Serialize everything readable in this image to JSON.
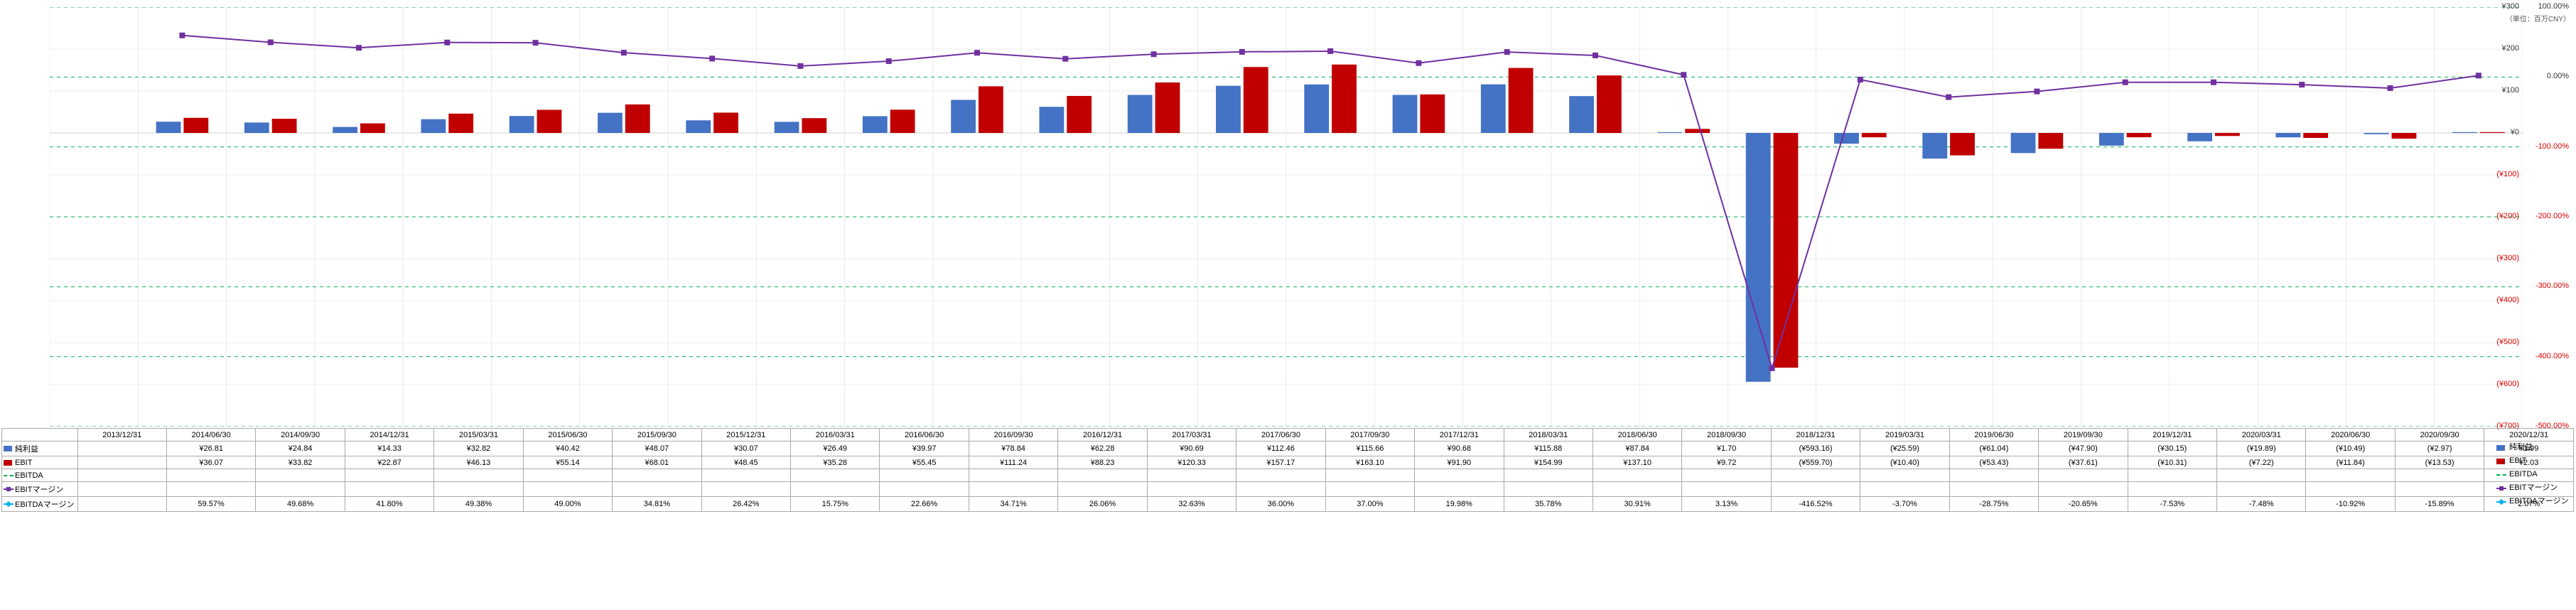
{
  "unit_label": "（単位：百万CNY）",
  "chart": {
    "type": "bar+line",
    "background": "#ffffff",
    "grid_color_major": "#d9d9d9",
    "grid_color_ebit_margin": "#00b050",
    "bar_colors": {
      "net_income": "#4472c4",
      "ebit": "#c00000"
    },
    "line_colors": {
      "ebitda_margin": "#7030a0",
      "ebit_margin_line": "#00b0f0"
    },
    "y_left": {
      "min": -700,
      "max": 300,
      "step": 100,
      "labels": [
        "¥300",
        "¥200",
        "¥100",
        "¥0",
        "(¥100)",
        "(¥200)",
        "(¥300)",
        "(¥400)",
        "(¥500)",
        "(¥600)",
        "(¥700)"
      ]
    },
    "y_right": {
      "min": -500,
      "max": 100,
      "step": 100,
      "labels": [
        "100.00%",
        "0.00%",
        "-100.00%",
        "-200.00%",
        "-300.00%",
        "-400.00%",
        "-500.00%"
      ]
    },
    "categories": [
      "2013/12/31",
      "2014/06/30",
      "2014/09/30",
      "2014/12/31",
      "2015/03/31",
      "2015/06/30",
      "2015/09/30",
      "2015/12/31",
      "2016/03/31",
      "2016/06/30",
      "2016/09/30",
      "2016/12/31",
      "2017/03/31",
      "2017/06/30",
      "2017/09/30",
      "2017/12/31",
      "2018/03/31",
      "2018/06/30",
      "2018/09/30",
      "2018/12/31",
      "2019/03/31",
      "2019/06/30",
      "2019/09/30",
      "2019/12/31",
      "2020/03/31",
      "2020/06/30",
      "2020/09/30",
      "2020/12/31"
    ]
  },
  "rows": {
    "net_income": {
      "label": "純利益",
      "values": [
        null,
        26.81,
        24.84,
        14.33,
        32.82,
        40.42,
        48.07,
        30.07,
        26.49,
        39.97,
        78.84,
        62.28,
        90.69,
        112.46,
        115.66,
        90.68,
        115.88,
        87.84,
        1.7,
        -593.16,
        -25.59,
        -61.04,
        -47.9,
        -30.15,
        -19.89,
        -10.49,
        -2.97,
        1.99
      ]
    },
    "ebit": {
      "label": "EBIT",
      "values": [
        null,
        36.07,
        33.82,
        22.87,
        46.13,
        55.14,
        68.01,
        48.45,
        35.28,
        55.45,
        111.24,
        88.23,
        120.33,
        157.17,
        163.1,
        91.9,
        154.99,
        137.1,
        9.72,
        -559.7,
        -10.4,
        -53.43,
        -37.61,
        -10.31,
        -7.22,
        -11.84,
        -13.53,
        2.03
      ]
    },
    "ebitda": {
      "label": "EBITDA",
      "values": [
        null,
        null,
        null,
        null,
        null,
        null,
        null,
        null,
        null,
        null,
        null,
        null,
        null,
        null,
        null,
        null,
        null,
        null,
        null,
        null,
        null,
        null,
        null,
        null,
        null,
        null,
        null,
        null
      ]
    },
    "ebit_margin": {
      "label": "EBITマージン",
      "values": [
        null,
        null,
        null,
        null,
        null,
        null,
        null,
        null,
        null,
        null,
        null,
        null,
        null,
        null,
        null,
        null,
        null,
        null,
        null,
        null,
        null,
        null,
        null,
        null,
        null,
        null,
        null,
        null
      ]
    },
    "ebitda_margin": {
      "label": "EBITDAマージン",
      "values": [
        null,
        59.57,
        49.68,
        41.8,
        49.38,
        49.0,
        34.81,
        26.42,
        15.75,
        22.66,
        34.71,
        26.06,
        32.63,
        36.0,
        37.0,
        19.98,
        35.78,
        30.91,
        3.13,
        -416.52,
        -3.7,
        -28.75,
        -20.65,
        -7.53,
        -7.48,
        -10.92,
        -15.89,
        2.07
      ]
    }
  },
  "display": {
    "net_income": [
      "",
      "¥26.81",
      "¥24.84",
      "¥14.33",
      "¥32.82",
      "¥40.42",
      "¥48.07",
      "¥30.07",
      "¥26.49",
      "¥39.97",
      "¥78.84",
      "¥62.28",
      "¥90.69",
      "¥112.46",
      "¥115.66",
      "¥90.68",
      "¥115.88",
      "¥87.84",
      "¥1.70",
      "(¥593.16)",
      "(¥25.59)",
      "(¥61.04)",
      "(¥47.90)",
      "(¥30.15)",
      "(¥19.89)",
      "(¥10.49)",
      "(¥2.97)",
      "¥1.99"
    ],
    "ebit": [
      "",
      "¥36.07",
      "¥33.82",
      "¥22.87",
      "¥46.13",
      "¥55.14",
      "¥68.01",
      "¥48.45",
      "¥35.28",
      "¥55.45",
      "¥111.24",
      "¥88.23",
      "¥120.33",
      "¥157.17",
      "¥163.10",
      "¥91.90",
      "¥154.99",
      "¥137.10",
      "¥9.72",
      "(¥559.70)",
      "(¥10.40)",
      "(¥53.43)",
      "(¥37.61)",
      "(¥10.31)",
      "(¥7.22)",
      "(¥11.84)",
      "(¥13.53)",
      "¥2.03"
    ],
    "ebitda": [
      "",
      "",
      "",
      "",
      "",
      "",
      "",
      "",
      "",
      "",
      "",
      "",
      "",
      "",
      "",
      "",
      "",
      "",
      "",
      "",
      "",
      "",
      "",
      "",
      "",
      "",
      "",
      ""
    ],
    "ebit_margin": [
      "",
      "",
      "",
      "",
      "",
      "",
      "",
      "",
      "",
      "",
      "",
      "",
      "",
      "",
      "",
      "",
      "",
      "",
      "",
      "",
      "",
      "",
      "",
      "",
      "",
      "",
      "",
      ""
    ],
    "ebitda_margin": [
      "",
      "59.57%",
      "49.68%",
      "41.80%",
      "49.38%",
      "49.00%",
      "34.81%",
      "26.42%",
      "15.75%",
      "22.66%",
      "34.71%",
      "26.06%",
      "32.63%",
      "36.00%",
      "37.00%",
      "19.98%",
      "35.78%",
      "30.91%",
      "3.13%",
      "-416.52%",
      "-3.70%",
      "-28.75%",
      "-20.65%",
      "-7.53%",
      "-7.48%",
      "-10.92%",
      "-15.89%",
      "2.07%"
    ]
  }
}
